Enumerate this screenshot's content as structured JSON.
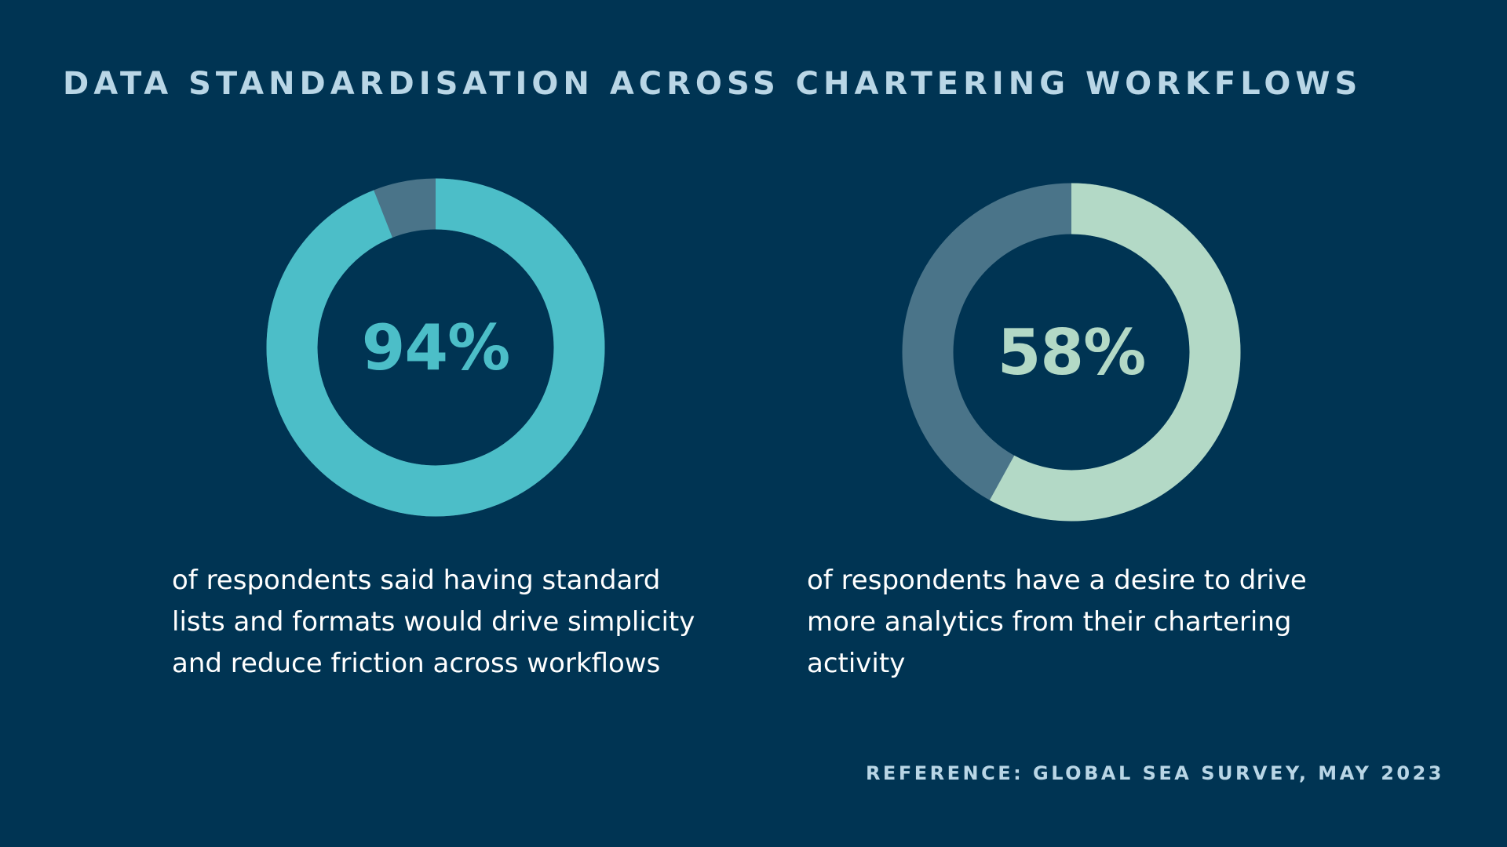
{
  "title": "DATA STANDARDISATION ACROSS CHARTERING WORKFLOWS",
  "reference": "REFERENCE: GLOBAL SEA SURVEY, MAY 2023",
  "colors": {
    "background": "#003453",
    "remainder": "#4a7489",
    "title": "#b9d6e6"
  },
  "chart_data": [
    {
      "type": "pie",
      "style": "donut",
      "value": 94,
      "remainder": 6,
      "label": "94%",
      "caption": "of respondents said having standard lists and formats would drive simplicity and reduce friction across workflows",
      "color": "#4cbec8",
      "remainder_color": "#4a7489"
    },
    {
      "type": "pie",
      "style": "donut",
      "value": 58,
      "remainder": 42,
      "label": "58%",
      "caption": "of respondents have a desire to drive more analytics from their chartering activity",
      "color": "#b3d9c6",
      "remainder_color": "#4a7489"
    }
  ]
}
